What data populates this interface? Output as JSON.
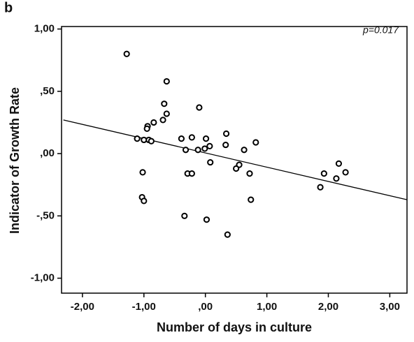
{
  "chart_data": {
    "type": "scatter",
    "panel_label": "b",
    "annotation": "p=0.017",
    "x_label": "Number of days in culture",
    "y_label": "Indicator of Growth Rate",
    "xlim": [
      -2.34,
      3.28
    ],
    "ylim": [
      -1.12,
      1.02
    ],
    "xticks": [
      {
        "value": -2,
        "label": "-2,00"
      },
      {
        "value": -1,
        "label": "-1,00"
      },
      {
        "value": 0,
        "label": ",00"
      },
      {
        "value": 1,
        "label": "1,00"
      },
      {
        "value": 2,
        "label": "2,00"
      },
      {
        "value": 3,
        "label": "3,00"
      }
    ],
    "yticks": [
      {
        "value": -1,
        "label": "-1,00"
      },
      {
        "value": -0.5,
        "label": "-,50"
      },
      {
        "value": 0,
        "label": ",00"
      },
      {
        "value": 0.5,
        "label": ",50"
      },
      {
        "value": 1,
        "label": "1,00"
      }
    ],
    "color": "#000000",
    "x": [
      -1.28,
      -0.63,
      -0.67,
      -0.63,
      -0.69,
      -0.84,
      -0.94,
      -0.95,
      -0.1,
      -1.11,
      -1.0,
      -0.92,
      -0.88,
      -0.39,
      -0.22,
      0.01,
      0.34,
      -0.32,
      -0.12,
      -0.01,
      0.07,
      0.33,
      0.82,
      0.63,
      0.08,
      0.55,
      0.5,
      0.72,
      -1.02,
      -0.29,
      -0.22,
      -1.03,
      -1.0,
      -0.34,
      0.02,
      0.36,
      0.74,
      1.87,
      1.93,
      2.17,
      2.13,
      2.28
    ],
    "y": [
      0.8,
      0.58,
      0.4,
      0.32,
      0.27,
      0.25,
      0.22,
      0.2,
      0.37,
      0.12,
      0.11,
      0.11,
      0.1,
      0.12,
      0.13,
      0.12,
      0.16,
      0.03,
      0.03,
      0.04,
      0.06,
      0.07,
      0.09,
      0.03,
      -0.07,
      -0.09,
      -0.12,
      -0.16,
      -0.15,
      -0.16,
      -0.16,
      -0.35,
      -0.38,
      -0.5,
      -0.53,
      -0.65,
      -0.37,
      -0.27,
      -0.16,
      -0.08,
      -0.2,
      -0.15
    ],
    "regression_line": {
      "x": [
        -2.31,
        3.28
      ],
      "y": [
        0.27,
        -0.37
      ]
    }
  }
}
